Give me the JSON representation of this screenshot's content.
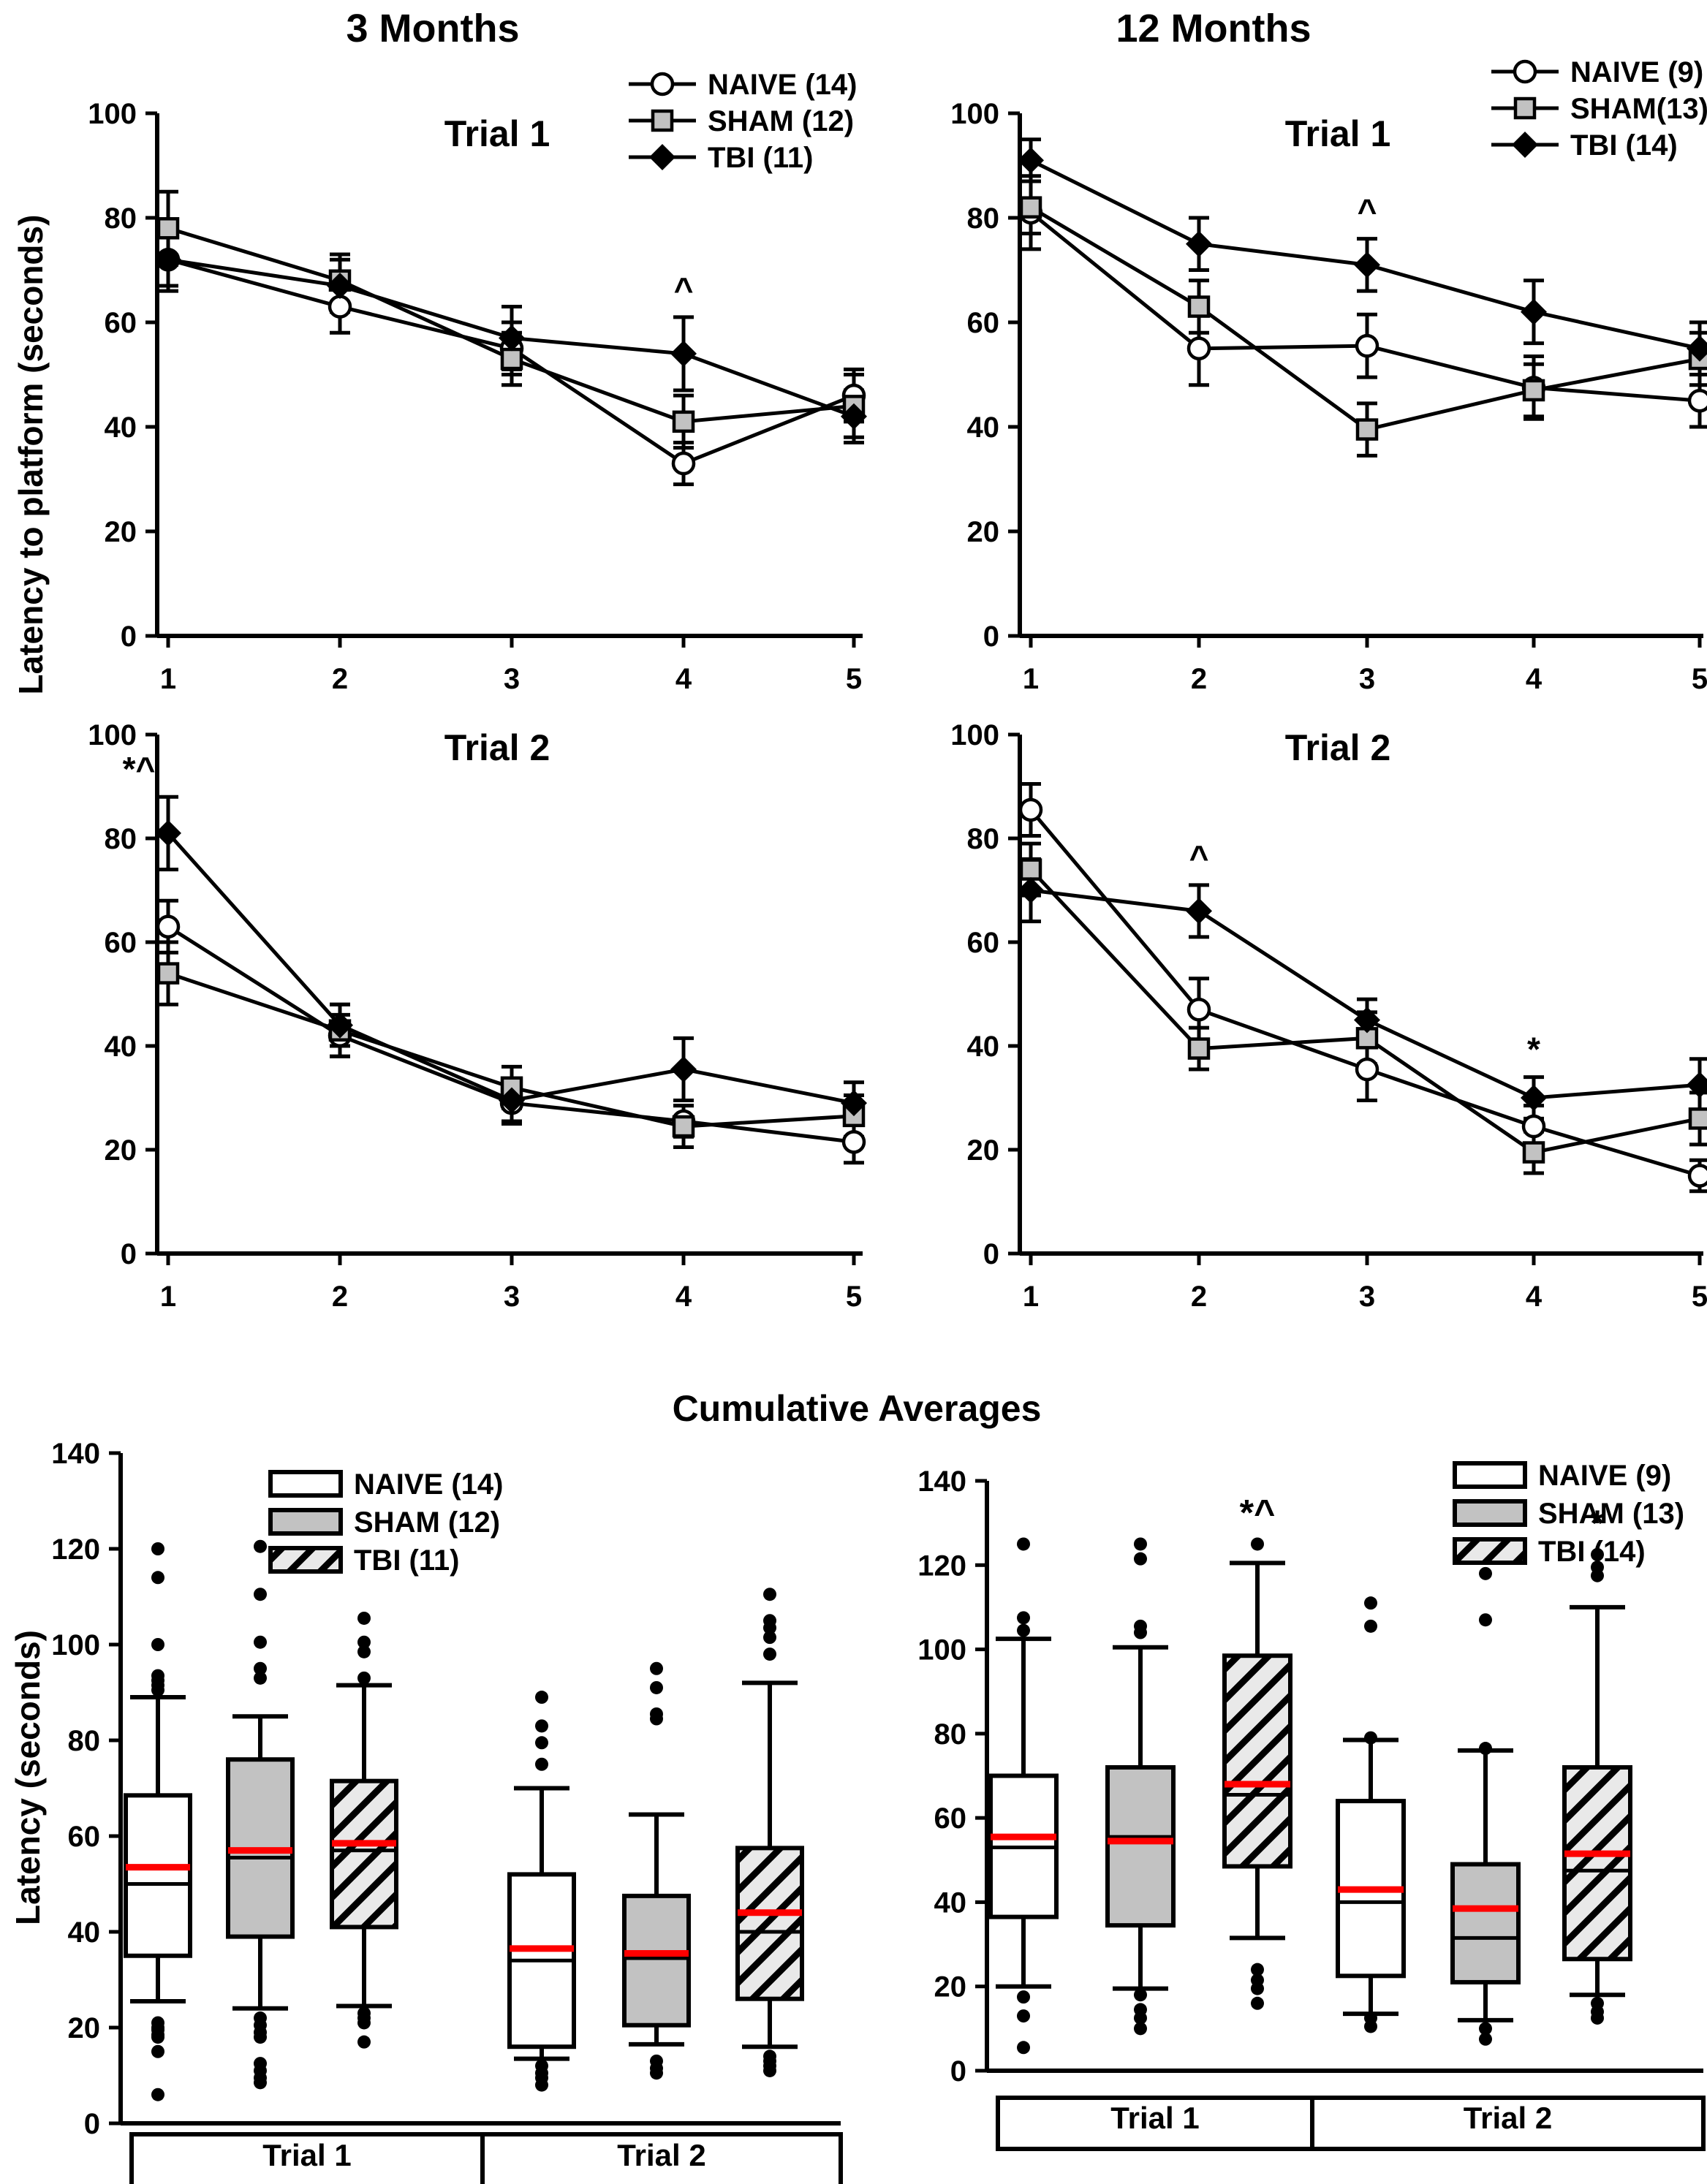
{
  "page": {
    "column_headers": {
      "left": "3 Months",
      "right": "12 Months"
    },
    "y_axis_label_top": "Latency to platform (seconds)",
    "y_axis_label_bottom": "Latency (seconds)",
    "section_title": "Cumulative Averages"
  },
  "colors": {
    "mean_line": "#ff0000",
    "sham_fill": "#c2c2c2",
    "hatch_bg": "#e9e9e9",
    "line": "#000000"
  },
  "chart_data": [
    {
      "id": "line-3mo-trial1",
      "type": "line",
      "title": "Trial 1",
      "month_group": "3 Months",
      "x": [
        1,
        2,
        3,
        4,
        5
      ],
      "ylim": [
        0,
        100
      ],
      "yticks": [
        0,
        20,
        40,
        60,
        80,
        100
      ],
      "grid": false,
      "legend_position": "top-right",
      "show_legend": true,
      "series": [
        {
          "name": "NAIVE (14)",
          "marker": "circle",
          "values": [
            72,
            63,
            55,
            33,
            46
          ],
          "errors": [
            5,
            5,
            5,
            4,
            5
          ]
        },
        {
          "name": "SHAM (12)",
          "marker": "square",
          "values": [
            78,
            68,
            53,
            41,
            44
          ],
          "errors": [
            7,
            5,
            5,
            5,
            6
          ]
        },
        {
          "name": "TBI (11)",
          "marker": "diamond",
          "values": [
            72,
            67,
            57,
            54,
            42
          ],
          "errors": [
            6,
            5,
            6,
            7,
            5
          ]
        }
      ],
      "annotations": [
        {
          "x": 4,
          "series": "TBI (11)",
          "text": "^",
          "dx": 0
        }
      ]
    },
    {
      "id": "line-12mo-trial1",
      "type": "line",
      "title": "Trial 1",
      "month_group": "12 Months",
      "x": [
        1,
        2,
        3,
        4,
        5
      ],
      "ylim": [
        0,
        100
      ],
      "yticks": [
        0,
        20,
        40,
        60,
        80,
        100
      ],
      "grid": false,
      "legend_position": "top-right",
      "show_legend": true,
      "series": [
        {
          "name": "NAIVE (9)",
          "marker": "circle",
          "values": [
            81,
            55,
            55.5,
            47.5,
            45
          ],
          "errors": [
            7,
            7,
            6,
            6,
            5
          ]
        },
        {
          "name": "SHAM(13)",
          "marker": "square",
          "values": [
            82,
            63,
            39.5,
            47,
            53
          ],
          "errors": [
            5,
            5,
            5,
            5,
            5
          ]
        },
        {
          "name": "TBI (14)",
          "marker": "diamond",
          "values": [
            91,
            75,
            71,
            62,
            55
          ],
          "errors": [
            4,
            5,
            5,
            6,
            5
          ]
        }
      ],
      "annotations": [
        {
          "x": 3,
          "series": "TBI (14)",
          "text": "^",
          "dx": 0
        }
      ]
    },
    {
      "id": "line-3mo-trial2",
      "type": "line",
      "title": "Trial 2",
      "month_group": "3 Months",
      "x": [
        1,
        2,
        3,
        4,
        5
      ],
      "ylim": [
        0,
        100
      ],
      "yticks": [
        0,
        20,
        40,
        60,
        80,
        100
      ],
      "grid": false,
      "show_legend": false,
      "series": [
        {
          "name": "NAIVE (14)",
          "marker": "circle",
          "values": [
            63,
            42,
            29,
            25.5,
            21.5
          ],
          "errors": [
            5,
            4,
            4,
            3,
            4
          ]
        },
        {
          "name": "SHAM (12)",
          "marker": "square",
          "values": [
            54,
            43,
            32,
            24.5,
            26.5
          ],
          "errors": [
            6,
            5,
            4,
            4,
            4
          ]
        },
        {
          "name": "TBI (11)",
          "marker": "diamond",
          "values": [
            81,
            44,
            29.5,
            35.5,
            29
          ],
          "errors": [
            7,
            4,
            4,
            6,
            4
          ]
        }
      ],
      "annotations": [
        {
          "x": 1,
          "series": "TBI (11)",
          "text": "*^",
          "dx": -40
        }
      ]
    },
    {
      "id": "line-12mo-trial2",
      "type": "line",
      "title": "Trial 2",
      "month_group": "12 Months",
      "x": [
        1,
        2,
        3,
        4,
        5
      ],
      "ylim": [
        0,
        100
      ],
      "yticks": [
        0,
        20,
        40,
        60,
        80,
        100
      ],
      "grid": false,
      "show_legend": false,
      "series": [
        {
          "name": "NAIVE (9)",
          "marker": "circle",
          "values": [
            85.5,
            47,
            35.5,
            24.5,
            15
          ],
          "errors": [
            5,
            6,
            6,
            4,
            3
          ]
        },
        {
          "name": "SHAM (13)",
          "marker": "square",
          "values": [
            74,
            39.5,
            41.5,
            19.5,
            26
          ],
          "errors": [
            5,
            4,
            5,
            4,
            5
          ]
        },
        {
          "name": "TBI (14)",
          "marker": "diamond",
          "values": [
            70,
            66,
            45,
            30,
            32.5
          ],
          "errors": [
            6,
            5,
            4,
            4,
            5
          ]
        }
      ],
      "annotations": [
        {
          "x": 2,
          "series": "TBI (14)",
          "text": "^",
          "dx": 0
        },
        {
          "x": 4,
          "series": "TBI (14)",
          "text": "*",
          "dx": 0
        }
      ]
    },
    {
      "id": "box-3mo",
      "type": "box",
      "title": "",
      "month_group": "3 Months",
      "ylim": [
        0,
        140
      ],
      "yticks": [
        0,
        20,
        40,
        60,
        80,
        100,
        120,
        140
      ],
      "group_labels": [
        "Trial 1",
        "Trial 2"
      ],
      "legend": [
        {
          "label": "NAIVE (14)",
          "style": "white"
        },
        {
          "label": "SHAM (12)",
          "style": "gray"
        },
        {
          "label": "TBI (11)",
          "style": "hatch"
        }
      ],
      "boxes": [
        {
          "group": "Trial 1",
          "name": "NAIVE (14)",
          "style": "white",
          "whisker_low": 25.5,
          "q1": 35,
          "median": 50,
          "mean": 53.5,
          "q3": 68.5,
          "whisker_high": 89,
          "outliers_above": [
            90.5,
            91.5,
            92.5,
            93.5,
            100,
            114,
            120
          ],
          "outliers_below": [
            21,
            20,
            19.5,
            18.5,
            18,
            15,
            6
          ]
        },
        {
          "group": "Trial 1",
          "name": "SHAM (12)",
          "style": "gray",
          "whisker_low": 24,
          "q1": 39,
          "median": 55.5,
          "mean": 57,
          "q3": 76,
          "whisker_high": 85,
          "outliers_above": [
            93,
            95,
            100.5,
            110.5,
            120.5
          ],
          "outliers_below": [
            22,
            20.5,
            19,
            18,
            12.5,
            11,
            9.5,
            8.5
          ]
        },
        {
          "group": "Trial 1",
          "name": "TBI (11)",
          "style": "hatch",
          "whisker_low": 24.5,
          "q1": 41,
          "median": 57,
          "mean": 58.5,
          "q3": 71.5,
          "whisker_high": 91.5,
          "outliers_above": [
            93,
            98.5,
            100.5,
            105.5
          ],
          "outliers_below": [
            23,
            22,
            21,
            17
          ]
        },
        {
          "group": "Trial 2",
          "name": "NAIVE (14)",
          "style": "white",
          "whisker_low": 13.5,
          "q1": 16,
          "median": 34,
          "mean": 36.5,
          "q3": 52,
          "whisker_high": 70,
          "outliers_above": [
            75,
            79.5,
            83,
            89
          ],
          "outliers_below": [
            12,
            10.5,
            9.5,
            8
          ]
        },
        {
          "group": "Trial 2",
          "name": "SHAM (12)",
          "style": "gray",
          "whisker_low": 16.5,
          "q1": 20.5,
          "median": 34.5,
          "mean": 35.5,
          "q3": 47.5,
          "whisker_high": 64.5,
          "outliers_above": [
            84.5,
            85.5,
            91,
            95
          ],
          "outliers_below": [
            13,
            11.5,
            10.5
          ]
        },
        {
          "group": "Trial 2",
          "name": "TBI (11)",
          "style": "hatch",
          "whisker_low": 16,
          "q1": 26,
          "median": 40,
          "mean": 44,
          "q3": 57.5,
          "whisker_high": 92,
          "outliers_above": [
            98,
            101.5,
            103.5,
            105,
            110.5
          ],
          "outliers_below": [
            14,
            13,
            12,
            11
          ]
        }
      ],
      "annotations": []
    },
    {
      "id": "box-12mo",
      "type": "box",
      "title": "",
      "month_group": "12 Months",
      "ylim": [
        0,
        140
      ],
      "yticks": [
        0,
        20,
        40,
        60,
        80,
        100,
        120,
        140
      ],
      "group_labels": [
        "Trial 1",
        "Trial 2"
      ],
      "legend": [
        {
          "label": "NAIVE (9)",
          "style": "white"
        },
        {
          "label": "SHAM (13)",
          "style": "gray"
        },
        {
          "label": "TBI (14)",
          "style": "hatch"
        }
      ],
      "boxes": [
        {
          "group": "Trial 1",
          "name": "NAIVE (9)",
          "style": "white",
          "whisker_low": 20,
          "q1": 36.5,
          "median": 53,
          "mean": 55.5,
          "q3": 70,
          "whisker_high": 102.5,
          "outliers_above": [
            104.5,
            107.5,
            125
          ],
          "outliers_below": [
            17.5,
            13,
            5.5
          ]
        },
        {
          "group": "Trial 1",
          "name": "SHAM (13)",
          "style": "gray",
          "whisker_low": 19.5,
          "q1": 34.5,
          "median": 55.5,
          "mean": 54.5,
          "q3": 72,
          "whisker_high": 100.5,
          "outliers_above": [
            104,
            105.5,
            121.5,
            125
          ],
          "outliers_below": [
            18,
            14.5,
            12.5,
            10
          ]
        },
        {
          "group": "Trial 1",
          "name": "TBI (14)",
          "style": "hatch",
          "whisker_low": 31.5,
          "q1": 48.5,
          "median": 65.5,
          "mean": 68,
          "q3": 98.5,
          "whisker_high": 120.5,
          "outliers_above": [
            125
          ],
          "outliers_below": [
            24,
            21.5,
            19.5,
            16
          ],
          "annotation": "*^"
        },
        {
          "group": "Trial 2",
          "name": "NAIVE (9)",
          "style": "white",
          "whisker_low": 13.5,
          "q1": 22.5,
          "median": 40,
          "mean": 43,
          "q3": 64,
          "whisker_high": 78.5,
          "outliers_above": [
            79,
            105.5,
            111
          ],
          "outliers_below": [
            12.5,
            10.5
          ]
        },
        {
          "group": "Trial 2",
          "name": "SHAM (13)",
          "style": "gray",
          "whisker_low": 12,
          "q1": 21,
          "median": 31.5,
          "mean": 38.5,
          "q3": 49,
          "whisker_high": 76,
          "outliers_above": [
            76.5,
            107,
            118
          ],
          "outliers_below": [
            10,
            7.5
          ]
        },
        {
          "group": "Trial 2",
          "name": "TBI (14)",
          "style": "hatch",
          "whisker_low": 18,
          "q1": 26.5,
          "median": 47.5,
          "mean": 51.5,
          "q3": 72,
          "whisker_high": 110,
          "outliers_above": [
            117.5,
            119.5,
            122.5
          ],
          "outliers_below": [
            16,
            14,
            12.5
          ],
          "annotation": "*"
        }
      ],
      "annotations": []
    }
  ]
}
